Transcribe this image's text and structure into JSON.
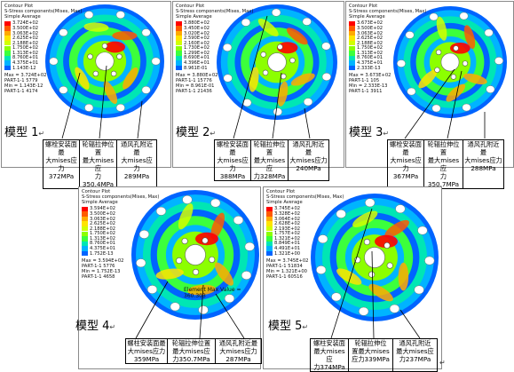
{
  "legend": {
    "title": "Contour Plot",
    "component": "S-Stress components(Mises, Max)",
    "average": "Simple Average"
  },
  "colors": {
    "scale": [
      "#ff0000",
      "#ff5a00",
      "#ffaa00",
      "#ffe400",
      "#d2ff00",
      "#8cff00",
      "#3cff3c",
      "#00e6b4",
      "#00b4ff",
      "#0064ff",
      "#0000c8"
    ],
    "hole": "#ffffff",
    "leader": "#000000"
  },
  "panels": [
    {
      "scale_values": [
        "3.724E+02",
        "3.500E+02",
        "3.063E+02",
        "2.625E+02",
        "2.188E+02",
        "1.750E+02",
        "1.313E+02",
        "8.760E+01",
        "4.375E+01",
        "1.143E-12"
      ],
      "stats": [
        "Max = 3.724E+02",
        "PART-1-1 5779",
        "Min = 1.143E-12",
        "PART-1-1 4174"
      ],
      "model_label": "模型 1",
      "cells": [
        {
          "line1": "螺栓安装面最",
          "line2": "大mises应力",
          "line3": "372MPa"
        },
        {
          "line1": "轮辐拉伸位置",
          "line2": "最大mises应",
          "line3": "力350.4MPa"
        },
        {
          "line1": "通风孔附近最",
          "line2": "大mises应力",
          "line3": "289MPa"
        }
      ]
    },
    {
      "scale_values": [
        "3.880E+02",
        "3.450E+02",
        "3.020E+02",
        "2.590E+02",
        "2.160E+02",
        "1.730E+02",
        "1.299E+02",
        "8.690E+01",
        "4.396E+01",
        "8.961E-01"
      ],
      "stats": [
        "Max = 3.880E+02",
        "PART-1-1 15776",
        "Min = 8.961E-01",
        "PART-1-1 21436"
      ],
      "model_label": "模型 2",
      "cells": [
        {
          "line1": "螺栓安装面最",
          "line2": "大mises应力",
          "line3": "388MPa"
        },
        {
          "line1": "轮辐拉伸位置",
          "line2": "最大mises应",
          "line3": "力328MPa"
        },
        {
          "line1": "通风孔附近最",
          "line2": "大mises应力",
          "line3": "240MPa"
        }
      ]
    },
    {
      "scale_values": [
        "3.673E+02",
        "3.500E+02",
        "3.063E+02",
        "2.625E+02",
        "2.188E+02",
        "1.750E+02",
        "1.313E+02",
        "8.760E+01",
        "4.375E+01",
        "2.333E-13"
      ],
      "stats": [
        "Max = 3.673E+02",
        "PART-1-1 105",
        "Min = 2.333E-13",
        "PART-1-1 3911"
      ],
      "model_label": "模型 3",
      "cells": [
        {
          "line1": "螺栓安装面最",
          "line2": "大mises应力",
          "line3": "367MPa"
        },
        {
          "line1": "轮辐拉伸位置",
          "line2": "最大mises应",
          "line3": "力350.7MPa"
        },
        {
          "line1": "通风孔附近最",
          "line2": "大mises应力",
          "line3": "288MPa"
        }
      ]
    },
    {
      "scale_values": [
        "3.594E+02",
        "3.500E+02",
        "3.063E+02",
        "2.625E+02",
        "2.188E+02",
        "1.750E+02",
        "1.313E+02",
        "8.760E+01",
        "4.375E+01",
        "1.752E-13"
      ],
      "stats": [
        "Max = 3.594E+02",
        "PART-1-1 5776",
        "Min = 1.752E-13",
        "PART-1-1 4658"
      ],
      "annotation": "Element Max Value = 360.303",
      "model_label": "模型 4",
      "cells": [
        {
          "line1": "螺柱安装面最",
          "line2": "大mises应力",
          "line3": "359MPa"
        },
        {
          "line1": "轮辐拉伸位置",
          "line2": "最大mises应",
          "line3": "力350.7MPa"
        },
        {
          "line1": "通风孔附近最",
          "line2": "大mises应力",
          "line3": "287MPa"
        }
      ]
    },
    {
      "scale_values": [
        "3.745E+02",
        "3.328E+02",
        "3.064E+02",
        "2.628E+02",
        "2.193E+02",
        "1.757E+02",
        "1.321E+02",
        "8.849E+01",
        "4.491E+01",
        "1.321E+00"
      ],
      "stats": [
        "Max = 3.745E+02",
        "PART-1-1 51834",
        "Min = 1.321E+00",
        "PART-1-1 60516"
      ],
      "model_label": "模型 5",
      "cells": [
        {
          "line1": "螺柱安装面",
          "line2": "最大mises应",
          "line3": "力374MPa"
        },
        {
          "line1": "轮辐拉伸位",
          "line2": "置最大mises",
          "line3": "应力339MPa"
        },
        {
          "line1": "通风孔附近",
          "line2": "最大mises应",
          "line3": "力237MPa"
        }
      ]
    }
  ],
  "return_mark": "↵"
}
